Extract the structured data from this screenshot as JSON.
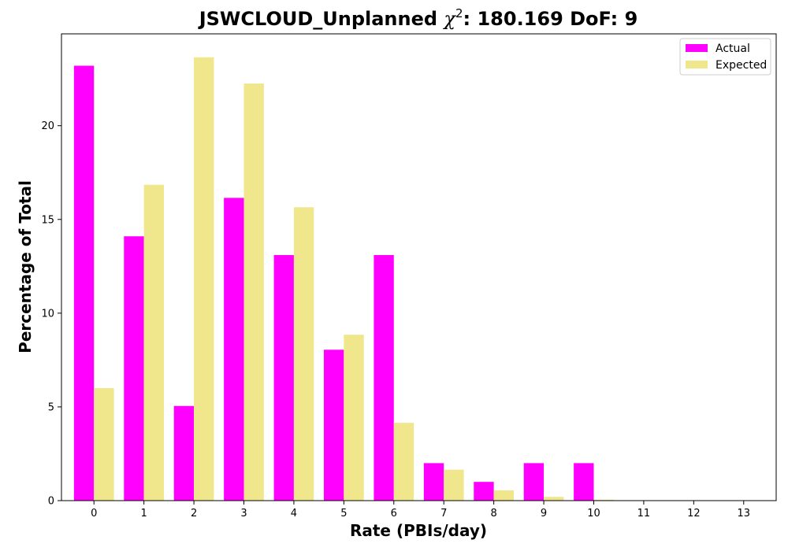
{
  "chart_data": {
    "type": "bar",
    "title_prefix": "JSWCLOUD_Unplanned ",
    "title_chi": "χ",
    "title_sup": "2",
    "title_suffix": ": 180.169 DoF: 9",
    "xlabel": "Rate (PBIs/day)",
    "ylabel": "Percentage of Total",
    "categories": [
      "0",
      "1",
      "2",
      "3",
      "4",
      "5",
      "6",
      "7",
      "8",
      "9",
      "10",
      "11",
      "12",
      "13"
    ],
    "series": [
      {
        "name": "Actual",
        "color": "#ff00ff",
        "values": [
          23.2,
          14.1,
          5.05,
          16.15,
          13.1,
          8.05,
          13.1,
          2.0,
          1.0,
          2.0,
          2.0,
          0,
          0,
          0
        ]
      },
      {
        "name": "Expected",
        "color": "#f0e68c",
        "values": [
          6.0,
          16.85,
          23.65,
          22.25,
          15.65,
          8.85,
          4.15,
          1.65,
          0.55,
          0.2,
          0.05,
          0.01,
          0,
          0
        ]
      }
    ],
    "ylim": [
      0,
      24.9
    ],
    "yticks": [
      0,
      5,
      10,
      15,
      20
    ],
    "grid": false,
    "legend_position": "top-right"
  }
}
